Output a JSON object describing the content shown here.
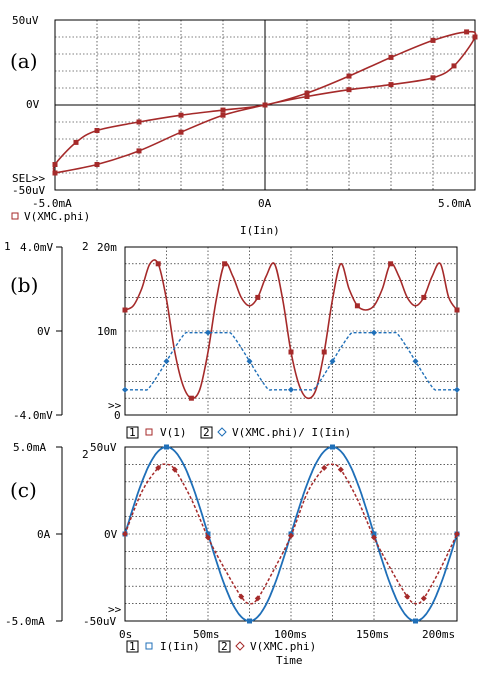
{
  "colors": {
    "red": "#a52a2a",
    "blue": "#1f6fb8",
    "grid": "#000000"
  },
  "panel_a": {
    "label": "(a)",
    "y_ticks": [
      "50uV",
      "0V",
      "-50uV"
    ],
    "sel_marker": "SEL>>",
    "x_ticks": [
      "-5.0mA",
      "0A",
      "5.0mA"
    ],
    "legend_text": "V(XMC.phi)",
    "xlabel": "I(Iin)"
  },
  "panel_b": {
    "label": "(b)",
    "axis1_num": "1",
    "axis2_num": "2",
    "axis1_ticks": [
      "4.0mV",
      "0V",
      "-4.0mV"
    ],
    "axis2_ticks": [
      "20m",
      "10m",
      "0"
    ],
    "marker": ">>",
    "legend": {
      "n1": "1",
      "s1": "V(1)",
      "n2": "2",
      "s2": "V(XMC.phi)/ I(Iin)"
    }
  },
  "panel_c": {
    "label": "(c)",
    "axis2_num": "2",
    "axis1_ticks": [
      "5.0mA",
      "0A",
      "-5.0mA"
    ],
    "axis2_ticks": [
      "50uV",
      "0V",
      "-50uV"
    ],
    "marker": ">>",
    "x_ticks": [
      "0s",
      "50ms",
      "100ms",
      "150ms",
      "200ms"
    ],
    "legend": {
      "n1": "1",
      "s1": "I(Iin)",
      "n2": "2",
      "s2": "V(XMC.phi)"
    },
    "xlabel": "Time"
  },
  "chart_data": [
    {
      "type": "line",
      "x": "I(Iin) in mA",
      "y": "V(XMC.phi) in uV",
      "xlim": [
        -5,
        5
      ],
      "ylim": [
        -50,
        50
      ],
      "series": [
        {
          "name": "V(XMC.phi)",
          "color": "red",
          "points": [
            [
              -5,
              -40
            ],
            [
              -4,
              -35
            ],
            [
              -3,
              -27
            ],
            [
              -2,
              -16
            ],
            [
              -1,
              -6
            ],
            [
              0,
              0
            ],
            [
              1,
              5
            ],
            [
              2,
              9
            ],
            [
              3,
              12
            ],
            [
              4,
              16
            ],
            [
              4.5,
              23
            ],
            [
              5,
              40
            ],
            [
              4.8,
              43
            ],
            [
              4,
              38
            ],
            [
              3,
              28
            ],
            [
              2,
              17
            ],
            [
              1,
              7
            ],
            [
              0,
              0
            ],
            [
              -1,
              -3
            ],
            [
              -2,
              -6
            ],
            [
              -3,
              -10
            ],
            [
              -4,
              -15
            ],
            [
              -4.5,
              -22
            ],
            [
              -5,
              -35
            ],
            [
              -5,
              -40
            ]
          ]
        }
      ]
    },
    {
      "type": "line",
      "x": "Time in ms",
      "xlim": [
        0,
        200
      ],
      "axis1_label": "V(1)",
      "axis1_ylim": [
        -4,
        4
      ],
      "axis2_label": "V(XMC.phi)/ I(Iin)",
      "axis2_ylim": [
        0,
        20
      ],
      "series": [
        {
          "name": "V(1)",
          "axis": 1,
          "color": "red",
          "points": [
            [
              0,
              1
            ],
            [
              5,
              1.2
            ],
            [
              10,
              2
            ],
            [
              15,
              3.2
            ],
            [
              20,
              3.2
            ],
            [
              25,
              1.5
            ],
            [
              30,
              -1
            ],
            [
              35,
              -2.6
            ],
            [
              40,
              -3.2
            ],
            [
              45,
              -2.8
            ],
            [
              50,
              -1
            ],
            [
              55,
              1.5
            ],
            [
              60,
              3.2
            ],
            [
              65,
              2.6
            ],
            [
              70,
              1.6
            ],
            [
              75,
              1.2
            ],
            [
              80,
              1.6
            ],
            [
              85,
              2.6
            ],
            [
              90,
              3.2
            ],
            [
              95,
              1.5
            ],
            [
              100,
              -1
            ],
            [
              105,
              -2.6
            ],
            [
              110,
              -3.2
            ],
            [
              115,
              -2.8
            ],
            [
              120,
              -1
            ],
            [
              125,
              1.5
            ],
            [
              130,
              3.2
            ],
            [
              135,
              2
            ],
            [
              140,
              1.2
            ],
            [
              145,
              1
            ],
            [
              150,
              1.2
            ],
            [
              155,
              2
            ],
            [
              160,
              3.2
            ],
            [
              165,
              2.6
            ],
            [
              170,
              1.6
            ],
            [
              175,
              1.2
            ],
            [
              180,
              1.6
            ],
            [
              185,
              2.6
            ],
            [
              190,
              3.2
            ],
            [
              195,
              1.6
            ],
            [
              200,
              1
            ]
          ]
        }
      ]
    },
    {
      "type": "line",
      "x": "Time in ms",
      "xlim": [
        0,
        200
      ],
      "axis1_label": "I(Iin)",
      "axis1_ylim": [
        -5,
        5
      ],
      "axis2_label": "V(XMC.phi)",
      "axis2_ylim": [
        -50,
        50
      ],
      "series": [
        {
          "name": "I(Iin)",
          "axis": 1,
          "color": "blue",
          "function": "5*sin(2*pi*t/100)",
          "unit": "mA"
        },
        {
          "name": "V(XMC.phi)",
          "axis": 2,
          "color": "red",
          "unit": "uV",
          "points": [
            [
              0,
              0
            ],
            [
              10,
              24
            ],
            [
              20,
              38
            ],
            [
              25,
              40
            ],
            [
              30,
              37
            ],
            [
              40,
              20
            ],
            [
              50,
              -2
            ],
            [
              60,
              -20
            ],
            [
              70,
              -36
            ],
            [
              75,
              -40
            ],
            [
              80,
              -37
            ],
            [
              90,
              -20
            ],
            [
              100,
              -1
            ],
            [
              110,
              24
            ],
            [
              120,
              38
            ],
            [
              125,
              40
            ],
            [
              130,
              37
            ],
            [
              140,
              20
            ],
            [
              150,
              -2
            ],
            [
              160,
              -20
            ],
            [
              170,
              -36
            ],
            [
              175,
              -40
            ],
            [
              180,
              -37
            ],
            [
              190,
              -20
            ],
            [
              200,
              0
            ]
          ]
        }
      ]
    }
  ]
}
